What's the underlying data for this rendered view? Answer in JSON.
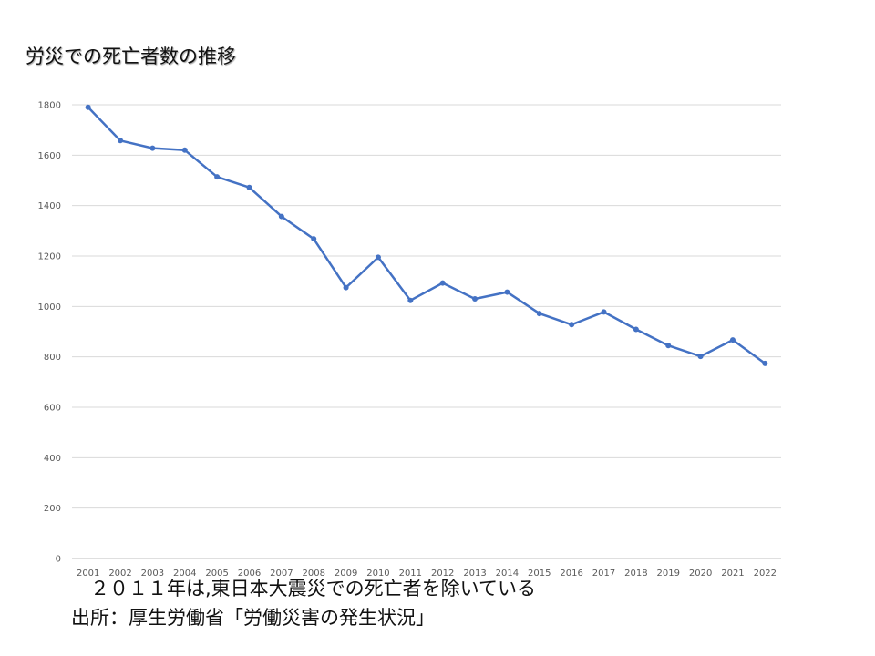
{
  "slide": {
    "title": "労災での死亡者数の推移",
    "note": "　２０１１年は,東日本大震災での死亡者を除いている",
    "source": "出所：厚生労働省「労働災害の発生状況」"
  },
  "chart_data": {
    "type": "line",
    "x": [
      "2001",
      "2002",
      "2003",
      "2004",
      "2005",
      "2006",
      "2007",
      "2008",
      "2009",
      "2010",
      "2011",
      "2012",
      "2013",
      "2014",
      "2015",
      "2016",
      "2017",
      "2018",
      "2019",
      "2020",
      "2021",
      "2022"
    ],
    "series": [
      {
        "values": [
          1790,
          1658,
          1628,
          1620,
          1514,
          1472,
          1357,
          1268,
          1075,
          1195,
          1024,
          1093,
          1030,
          1057,
          972,
          928,
          978,
          909,
          845,
          802,
          867,
          774
        ]
      }
    ],
    "yticks": [
      "0",
      "200",
      "400",
      "600",
      "800",
      "1000",
      "1200",
      "1400",
      "1600",
      "1800"
    ],
    "ylim": [
      0,
      1800
    ],
    "grid": true,
    "color": "#4472C4"
  }
}
